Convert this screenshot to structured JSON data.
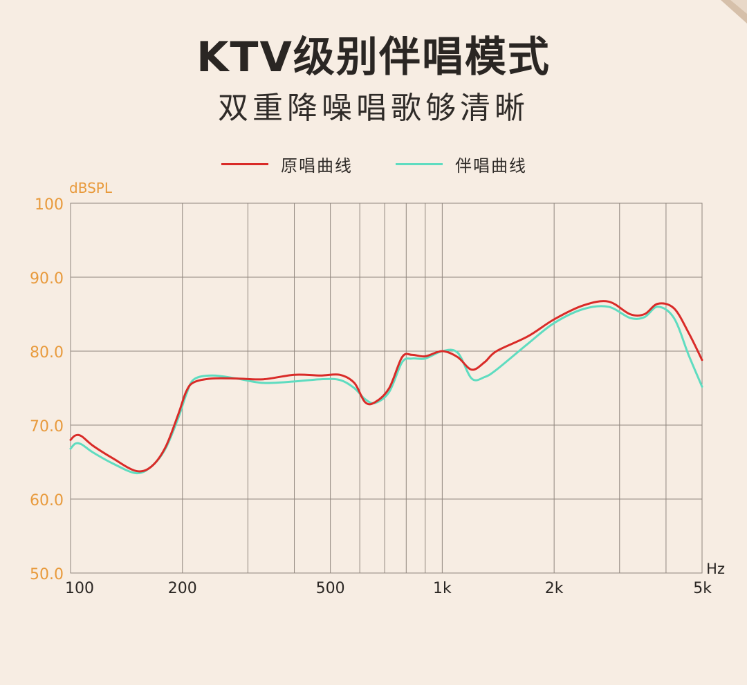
{
  "title": "KTV级别伴唱模式",
  "subtitle": "双重降噪唱歌够清晰",
  "colors": {
    "background": "#f7ede3",
    "grid": "#8f857d",
    "axis_text": "#e89a3c",
    "x_text": "#2a2623",
    "original": "#d92b28",
    "accompany": "#5fdcc0"
  },
  "chart_data": {
    "type": "line",
    "ylabel": "dBSPL",
    "xlabel": "Hz",
    "x_scale": "log",
    "xlim": [
      100,
      5000
    ],
    "ylim": [
      50,
      100
    ],
    "y_ticks": [
      "100",
      "90.0",
      "80.0",
      "70.0",
      "60.0",
      "50.0"
    ],
    "y_tick_values": [
      100,
      90,
      80,
      70,
      60,
      50
    ],
    "x_ticks": [
      "100",
      "200",
      "500",
      "1k",
      "2k",
      "5k"
    ],
    "x_tick_values": [
      100,
      200,
      500,
      1000,
      2000,
      5000
    ],
    "x_gridlines": [
      200,
      300,
      400,
      500,
      600,
      700,
      800,
      900,
      1000,
      2000,
      3000,
      4000
    ],
    "legend_position": "top-center",
    "series": [
      {
        "name": "原唱曲线",
        "color": "#d92b28",
        "x": [
          100,
          103,
          107,
          115,
          130,
          150,
          165,
          180,
          195,
          205,
          215,
          240,
          280,
          330,
          400,
          470,
          530,
          580,
          620,
          660,
          720,
          780,
          830,
          900,
          1000,
          1100,
          1200,
          1300,
          1400,
          1700,
          2000,
          2400,
          2800,
          3200,
          3500,
          3800,
          4200,
          4600,
          5000
        ],
        "y": [
          68.0,
          68.6,
          68.5,
          67.2,
          65.5,
          63.8,
          64.4,
          67.0,
          71.5,
          74.6,
          75.8,
          76.3,
          76.3,
          76.2,
          76.8,
          76.7,
          76.8,
          75.7,
          73.1,
          73.1,
          75.0,
          79.2,
          79.5,
          79.3,
          80.0,
          79.2,
          77.5,
          78.5,
          80.0,
          82.0,
          84.3,
          86.2,
          86.7,
          85.0,
          85.0,
          86.4,
          85.8,
          82.5,
          78.8
        ]
      },
      {
        "name": "伴唱曲线",
        "color": "#5fdcc0",
        "x": [
          100,
          103,
          107,
          115,
          130,
          150,
          165,
          180,
          195,
          205,
          215,
          240,
          280,
          330,
          400,
          470,
          530,
          580,
          620,
          660,
          720,
          780,
          830,
          900,
          1000,
          1100,
          1200,
          1300,
          1400,
          1700,
          2000,
          2400,
          2800,
          3200,
          3500,
          3800,
          4200,
          4600,
          5000
        ],
        "y": [
          66.8,
          67.5,
          67.4,
          66.3,
          64.8,
          63.5,
          64.4,
          66.8,
          71.0,
          74.2,
          76.2,
          76.7,
          76.3,
          75.7,
          75.9,
          76.2,
          76.1,
          75.0,
          73.5,
          73.0,
          74.5,
          78.5,
          79.0,
          79.0,
          80.0,
          79.8,
          76.3,
          76.5,
          77.5,
          81.0,
          83.8,
          85.7,
          86.0,
          84.5,
          84.6,
          86.0,
          84.5,
          79.5,
          75.2
        ]
      }
    ]
  }
}
